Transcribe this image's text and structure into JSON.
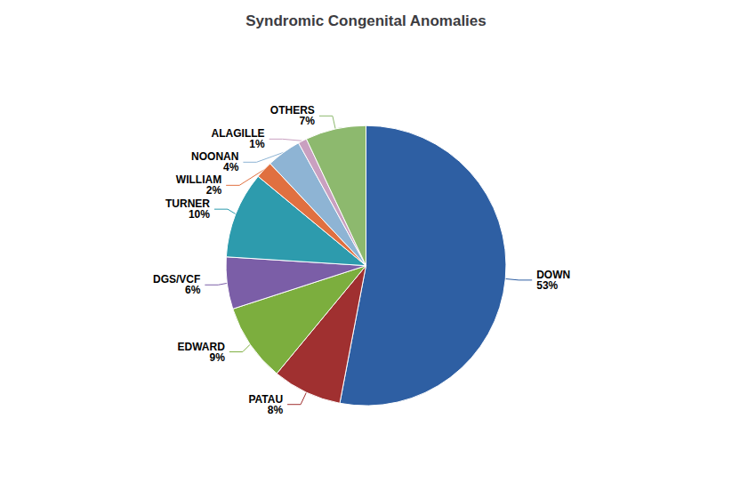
{
  "chart_data": {
    "type": "pie",
    "title": "Syndromic Congenital Anomalies",
    "categories": [
      "DOWN",
      "PATAU",
      "EDWARD",
      "DGS/VCF",
      "TURNER",
      "WILLIAM",
      "NOONAN",
      "ALAGILLE",
      "OTHERS"
    ],
    "values": [
      53,
      8,
      9,
      6,
      10,
      2,
      4,
      1,
      7
    ],
    "value_labels": [
      "53%",
      "8%",
      "9%",
      "6%",
      "10%",
      "2%",
      "4%",
      "1%",
      "7%"
    ],
    "colors": [
      "#2E5FA3",
      "#A03030",
      "#7CAE3E",
      "#7B5EA7",
      "#2D9BAD",
      "#E07040",
      "#8EB4D4",
      "#C9A0C0",
      "#8DB96E"
    ],
    "data_labels": true
  }
}
